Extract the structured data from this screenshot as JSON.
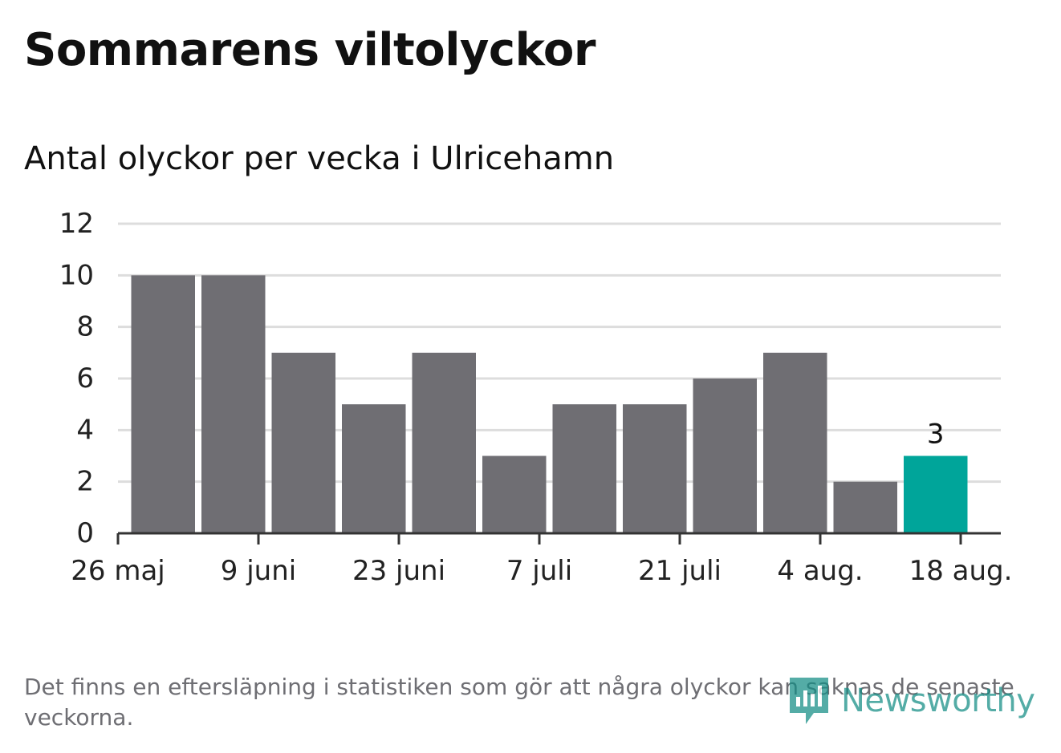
{
  "title": "Sommarens viltolyckor",
  "subtitle": "Antal olyckor per vecka i Ulricehamn",
  "footnote": "Det finns en eftersläpning i statistiken som gör att några olyckor kan saknas de senaste veckorna.",
  "logo": {
    "text": "Newsworthy",
    "icon": "newsworthy-bar-chart-logo-icon",
    "color": "#138d85"
  },
  "chart_data": {
    "type": "bar",
    "weeks": [
      "2019-05-27",
      "2019-06-03",
      "2019-06-10",
      "2019-06-17",
      "2019-06-24",
      "2019-07-01",
      "2019-07-08",
      "2019-07-15",
      "2019-07-22",
      "2019-07-29",
      "2019-08-05",
      "2019-08-12"
    ],
    "values": [
      10,
      10,
      7,
      5,
      7,
      3,
      5,
      5,
      6,
      7,
      2,
      3
    ],
    "highlight_index": 11,
    "data_labels": [
      {
        "index": 11,
        "text": "3"
      }
    ],
    "x_ticks": [
      {
        "date": "2019-05-26",
        "label": "26 maj"
      },
      {
        "date": "2019-06-09",
        "label": "9 juni"
      },
      {
        "date": "2019-06-23",
        "label": "23 juni"
      },
      {
        "date": "2019-07-07",
        "label": "7 juli"
      },
      {
        "date": "2019-07-21",
        "label": "21 juli"
      },
      {
        "date": "2019-08-04",
        "label": "4 aug."
      },
      {
        "date": "2019-08-18",
        "label": "18 aug."
      }
    ],
    "x_range": [
      "2019-05-26",
      "2019-08-22"
    ],
    "y_ticks": [
      0,
      2,
      4,
      6,
      8,
      10,
      12
    ],
    "ylim": [
      0,
      12
    ],
    "grid": true,
    "colors": {
      "bar": "#6f6e73",
      "highlight": "#00a59a",
      "grid": "#dddddd",
      "axis": "#333333",
      "text": "#222222"
    }
  }
}
